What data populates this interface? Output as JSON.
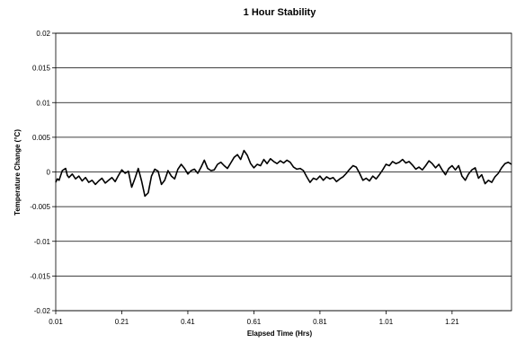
{
  "chart_data": {
    "type": "line",
    "title": "1 Hour Stability",
    "xlabel": "Elapsed Time (Hrs)",
    "ylabel": "Temperature Change (°C)",
    "xlim": [
      0.01,
      1.39
    ],
    "ylim": [
      -0.02,
      0.02
    ],
    "x_ticks": [
      "0.01",
      "0.21",
      "0.41",
      "0.61",
      "0.81",
      "1.01",
      "1.21"
    ],
    "x_tick_values": [
      0.01,
      0.21,
      0.41,
      0.61,
      0.81,
      1.01,
      1.21
    ],
    "y_ticks": [
      "0.02",
      "0.015",
      "0.01",
      "0.005",
      "0",
      "-0.005",
      "-0.01",
      "-0.015",
      "-0.02"
    ],
    "y_tick_values": [
      0.02,
      0.015,
      0.01,
      0.005,
      0,
      -0.005,
      -0.01,
      -0.015,
      -0.02
    ],
    "grid": "horizontal",
    "legend": "none",
    "line_color": "#000000",
    "series": [
      {
        "x": [
          0.01,
          0.015,
          0.02,
          0.03,
          0.04,
          0.045,
          0.05,
          0.06,
          0.07,
          0.08,
          0.09,
          0.1,
          0.11,
          0.12,
          0.13,
          0.14,
          0.15,
          0.16,
          0.17,
          0.18,
          0.19,
          0.2,
          0.21,
          0.22,
          0.23,
          0.24,
          0.25,
          0.26,
          0.27,
          0.28,
          0.29,
          0.3,
          0.31,
          0.32,
          0.33,
          0.34,
          0.35,
          0.36,
          0.37,
          0.38,
          0.39,
          0.4,
          0.41,
          0.42,
          0.43,
          0.44,
          0.45,
          0.46,
          0.47,
          0.48,
          0.49,
          0.5,
          0.51,
          0.52,
          0.53,
          0.54,
          0.55,
          0.56,
          0.57,
          0.58,
          0.59,
          0.6,
          0.61,
          0.62,
          0.63,
          0.64,
          0.65,
          0.66,
          0.67,
          0.68,
          0.69,
          0.7,
          0.71,
          0.72,
          0.73,
          0.74,
          0.75,
          0.76,
          0.77,
          0.78,
          0.79,
          0.8,
          0.81,
          0.82,
          0.83,
          0.84,
          0.85,
          0.86,
          0.87,
          0.88,
          0.89,
          0.9,
          0.91,
          0.92,
          0.93,
          0.94,
          0.95,
          0.96,
          0.97,
          0.98,
          0.99,
          1.0,
          1.01,
          1.02,
          1.03,
          1.04,
          1.05,
          1.06,
          1.07,
          1.08,
          1.09,
          1.1,
          1.11,
          1.12,
          1.13,
          1.14,
          1.15,
          1.16,
          1.17,
          1.18,
          1.19,
          1.2,
          1.21,
          1.22,
          1.23,
          1.24,
          1.25,
          1.26,
          1.27,
          1.28,
          1.29,
          1.3,
          1.31,
          1.32,
          1.33,
          1.34,
          1.35,
          1.36,
          1.37,
          1.38,
          1.39
        ],
        "y": [
          -0.0015,
          -0.001,
          -0.0012,
          0.0002,
          0.0005,
          -0.0005,
          -0.0008,
          -0.0003,
          -0.001,
          -0.0006,
          -0.0013,
          -0.0008,
          -0.0015,
          -0.0012,
          -0.0018,
          -0.0013,
          -0.0009,
          -0.0016,
          -0.0012,
          -0.0008,
          -0.0014,
          -0.0005,
          0.0003,
          -0.0002,
          0.0001,
          -0.0022,
          -0.0009,
          0.0005,
          -0.0013,
          -0.0035,
          -0.003,
          -0.0006,
          0.0004,
          0.0001,
          -0.0018,
          -0.0012,
          0.0002,
          -0.0006,
          -0.001,
          0.0004,
          0.0011,
          0.0005,
          -0.0003,
          0.0002,
          0.0004,
          -0.0002,
          0.0007,
          0.0017,
          0.0005,
          0.0002,
          0.0003,
          0.0011,
          0.0014,
          0.0009,
          0.0005,
          0.0013,
          0.0021,
          0.0025,
          0.0018,
          0.0031,
          0.0024,
          0.0012,
          0.0006,
          0.0011,
          0.0009,
          0.0018,
          0.0012,
          0.0019,
          0.0015,
          0.0012,
          0.0016,
          0.0013,
          0.0017,
          0.0014,
          0.0007,
          0.0004,
          0.0005,
          0.0002,
          -0.0007,
          -0.0015,
          -0.0009,
          -0.0011,
          -0.0006,
          -0.0012,
          -0.0007,
          -0.001,
          -0.0008,
          -0.0014,
          -0.001,
          -0.0007,
          -0.0002,
          0.0004,
          0.0009,
          0.0007,
          -0.0002,
          -0.0012,
          -0.0009,
          -0.0013,
          -0.0006,
          -0.001,
          -0.0004,
          0.0003,
          0.0011,
          0.0009,
          0.0015,
          0.0012,
          0.0014,
          0.0018,
          0.0013,
          0.0015,
          0.001,
          0.0004,
          0.0007,
          0.0003,
          0.0009,
          0.0016,
          0.0012,
          0.0006,
          0.0011,
          0.0003,
          -0.0004,
          0.0005,
          0.0009,
          0.0003,
          0.0009,
          -0.0006,
          -0.0012,
          -0.0003,
          0.0003,
          0.0006,
          -0.0009,
          -0.0004,
          -0.0017,
          -0.0012,
          -0.0015,
          -0.0007,
          -0.0002,
          0.0006,
          0.0012,
          0.0014,
          0.0011
        ]
      }
    ]
  }
}
